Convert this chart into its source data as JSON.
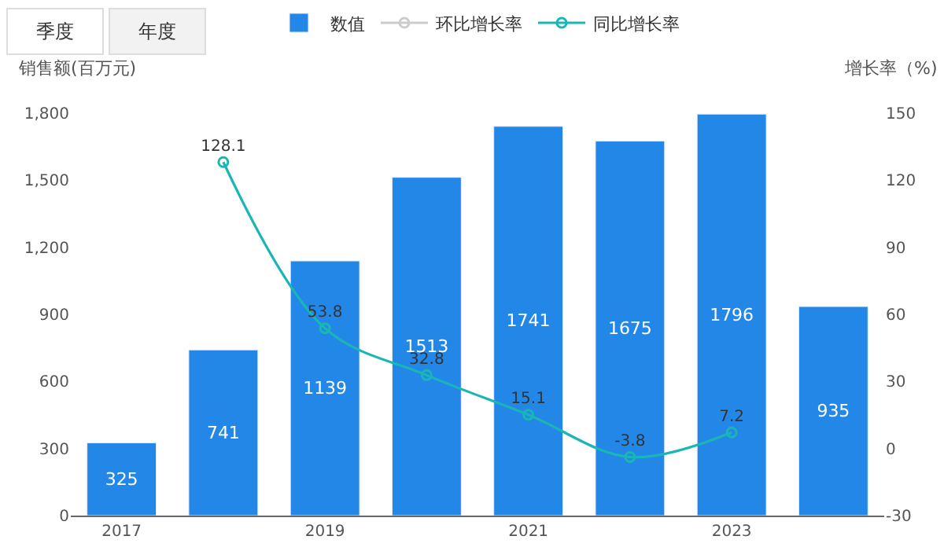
{
  "chart_data": {
    "type": "bar",
    "categories": [
      "2017",
      null,
      "2019",
      null,
      "2021",
      null,
      "2023",
      null
    ],
    "series": [
      {
        "name": "数值",
        "color": "#2387e8",
        "values": [
          325,
          741,
          1139,
          1513,
          1741,
          1675,
          1796,
          935
        ]
      },
      {
        "name": "环比增长率",
        "type": "line",
        "axis": "y2",
        "color": "#cccccc",
        "values": [
          null,
          null,
          null,
          null,
          null,
          null,
          null,
          null
        ]
      },
      {
        "name": "同比增长率",
        "type": "line",
        "axis": "y2",
        "color": "#1ab6b6",
        "values": [
          null,
          128.1,
          53.8,
          32.8,
          15.1,
          -3.8,
          7.2,
          null
        ]
      }
    ],
    "ylabel": "销售额(百万元)",
    "y2label": "增长率（%)",
    "ylim": [
      0,
      1800
    ],
    "yticks": [
      0,
      300,
      600,
      900,
      {
        "value": 1200,
        "label": "1,200"
      },
      {
        "value": 1500,
        "label": "1,500"
      },
      {
        "value": 1800,
        "label": "1,800"
      }
    ],
    "y2lim": [
      -30,
      150
    ],
    "y2ticks": [
      -30,
      0,
      30,
      60,
      90,
      120,
      150
    ],
    "annotations": [
      "季度",
      "年度"
    ],
    "data_labels": true,
    "legend": "top",
    "marker": "circle"
  }
}
